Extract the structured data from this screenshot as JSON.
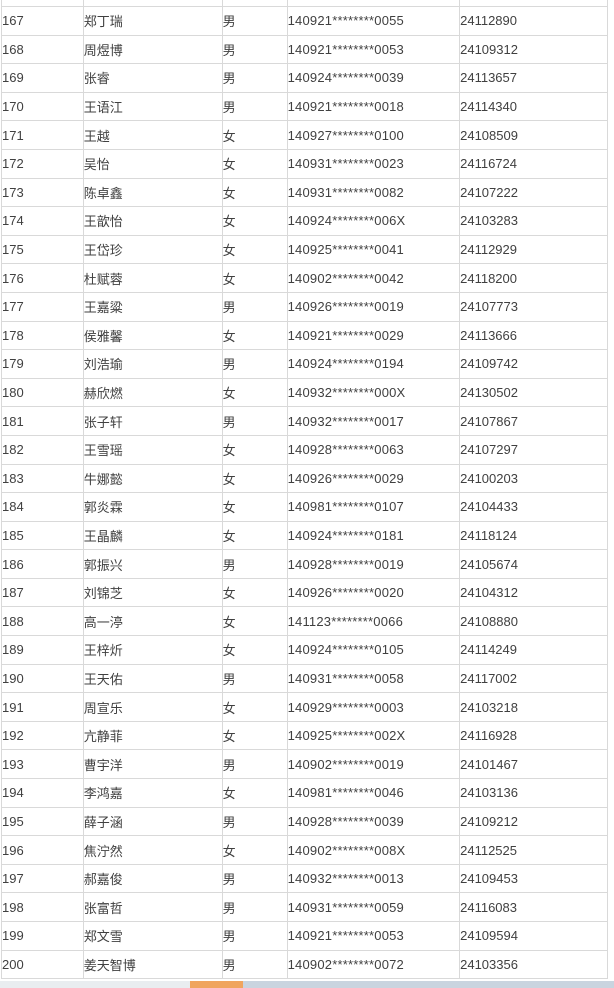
{
  "table": {
    "rows": [
      {
        "no": "167",
        "name": "郑丁瑞",
        "gender": "男",
        "id": "140921********0055",
        "reg": "24112890"
      },
      {
        "no": "168",
        "name": "周煜博",
        "gender": "男",
        "id": "140921********0053",
        "reg": "24109312"
      },
      {
        "no": "169",
        "name": "张睿",
        "gender": "男",
        "id": "140924********0039",
        "reg": "24113657"
      },
      {
        "no": "170",
        "name": "王语江",
        "gender": "男",
        "id": "140921********0018",
        "reg": "24114340"
      },
      {
        "no": "171",
        "name": "王越",
        "gender": "女",
        "id": "140927********0100",
        "reg": "24108509"
      },
      {
        "no": "172",
        "name": "吴怡",
        "gender": "女",
        "id": "140931********0023",
        "reg": "24116724"
      },
      {
        "no": "173",
        "name": "陈卓鑫",
        "gender": "女",
        "id": "140931********0082",
        "reg": "24107222"
      },
      {
        "no": "174",
        "name": "王歆怡",
        "gender": "女",
        "id": "140924********006X",
        "reg": "24103283"
      },
      {
        "no": "175",
        "name": "王岱珍",
        "gender": "女",
        "id": "140925********0041",
        "reg": "24112929"
      },
      {
        "no": "176",
        "name": "杜赋蓉",
        "gender": "女",
        "id": "140902********0042",
        "reg": "24118200"
      },
      {
        "no": "177",
        "name": "王嘉粱",
        "gender": "男",
        "id": "140926********0019",
        "reg": "24107773"
      },
      {
        "no": "178",
        "name": "侯雅馨",
        "gender": "女",
        "id": "140921********0029",
        "reg": "24113666"
      },
      {
        "no": "179",
        "name": "刘浩瑜",
        "gender": "男",
        "id": "140924********0194",
        "reg": "24109742"
      },
      {
        "no": "180",
        "name": "赫欣燃",
        "gender": "女",
        "id": "140932********000X",
        "reg": "24130502"
      },
      {
        "no": "181",
        "name": "张子轩",
        "gender": "男",
        "id": "140932********0017",
        "reg": "24107867"
      },
      {
        "no": "182",
        "name": "王雪瑶",
        "gender": "女",
        "id": "140928********0063",
        "reg": "24107297"
      },
      {
        "no": "183",
        "name": "牛娜懿",
        "gender": "女",
        "id": "140926********0029",
        "reg": "24100203"
      },
      {
        "no": "184",
        "name": "郭炎霖",
        "gender": "女",
        "id": "140981********0107",
        "reg": "24104433"
      },
      {
        "no": "185",
        "name": "王晶麟",
        "gender": "女",
        "id": "140924********0181",
        "reg": "24118124"
      },
      {
        "no": "186",
        "name": "郭振兴",
        "gender": "男",
        "id": "140928********0019",
        "reg": "24105674"
      },
      {
        "no": "187",
        "name": "刘锦芝",
        "gender": "女",
        "id": "140926********0020",
        "reg": "24104312"
      },
      {
        "no": "188",
        "name": "高一渟",
        "gender": "女",
        "id": "141123********0066",
        "reg": "24108880"
      },
      {
        "no": "189",
        "name": "王梓炘",
        "gender": "女",
        "id": "140924********0105",
        "reg": "24114249"
      },
      {
        "no": "190",
        "name": "王天佑",
        "gender": "男",
        "id": "140931********0058",
        "reg": "24117002"
      },
      {
        "no": "191",
        "name": "周宣乐",
        "gender": "女",
        "id": "140929********0003",
        "reg": "24103218"
      },
      {
        "no": "192",
        "name": "亢静菲",
        "gender": "女",
        "id": "140925********002X",
        "reg": "24116928"
      },
      {
        "no": "193",
        "name": "曹宇洋",
        "gender": "男",
        "id": "140902********0019",
        "reg": "24101467"
      },
      {
        "no": "194",
        "name": "李鸿嘉",
        "gender": "女",
        "id": "140981********0046",
        "reg": "24103136"
      },
      {
        "no": "195",
        "name": "薛子涵",
        "gender": "男",
        "id": "140928********0039",
        "reg": "24109212"
      },
      {
        "no": "196",
        "name": "焦泞然",
        "gender": "女",
        "id": "140902********008X",
        "reg": "24112525"
      },
      {
        "no": "197",
        "name": "郝嘉俊",
        "gender": "男",
        "id": "140932********0013",
        "reg": "24109453"
      },
      {
        "no": "198",
        "name": "张富哲",
        "gender": "男",
        "id": "140931********0059",
        "reg": "24116083"
      },
      {
        "no": "199",
        "name": "郑文雪",
        "gender": "男",
        "id": "140921********0053",
        "reg": "24109594"
      },
      {
        "no": "200",
        "name": "姜天智博",
        "gender": "男",
        "id": "140902********0072",
        "reg": "24103356"
      }
    ]
  },
  "colors": {
    "border": "#d9d9d9",
    "text": "#404040",
    "scrollbar_track": "#e9edf0",
    "scrollbar_thumb": "#f0a55f",
    "scrollbar_right": "#c9d4df"
  }
}
